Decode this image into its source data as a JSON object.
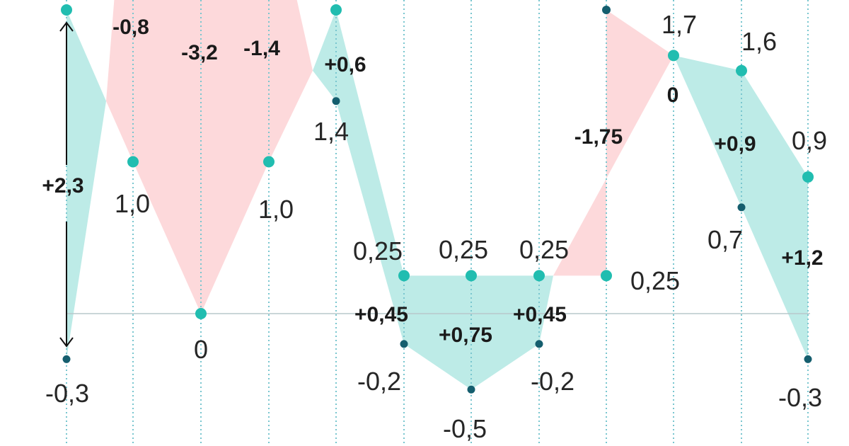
{
  "chart_data": {
    "type": "line",
    "ylim": [
      -0.6,
      2.1
    ],
    "baseline": 0,
    "colors": {
      "upper_series": "#21bdb0",
      "lower_series": "#155e6e",
      "positive_fill": "#bdebe7",
      "negative_fill": "#fdd9db",
      "guide_lines": "#79c6cf",
      "baseline": "#b8c8cc",
      "arrow": "#111111"
    },
    "series": [
      {
        "values": [
          2.0,
          1.0,
          0,
          1.0,
          2.0,
          0.25,
          0.25,
          0.25,
          0.25,
          1.7,
          1.6,
          0.9
        ]
      },
      {
        "values": [
          -0.3,
          null,
          null,
          null,
          1.4,
          -0.2,
          -0.5,
          -0.2,
          2.0,
          null,
          0.7,
          -0.3
        ]
      }
    ],
    "value_labels": [
      "-0,3",
      "1,0",
      "0",
      "1,0",
      "1,4",
      "0,25",
      "0,25",
      "0,25",
      "-0,2",
      "-0,5",
      "-0,2",
      "1,7",
      "0,25",
      "1,6",
      "0,7",
      "0,9",
      "-0,3"
    ],
    "difference_labels": [
      "+2,3",
      "-0,8",
      "-3,2",
      "-1,4",
      "+0,6",
      "+0,45",
      "+0,75",
      "+0,45",
      "-1,75",
      "0",
      "+0,9",
      "+1,2"
    ]
  }
}
